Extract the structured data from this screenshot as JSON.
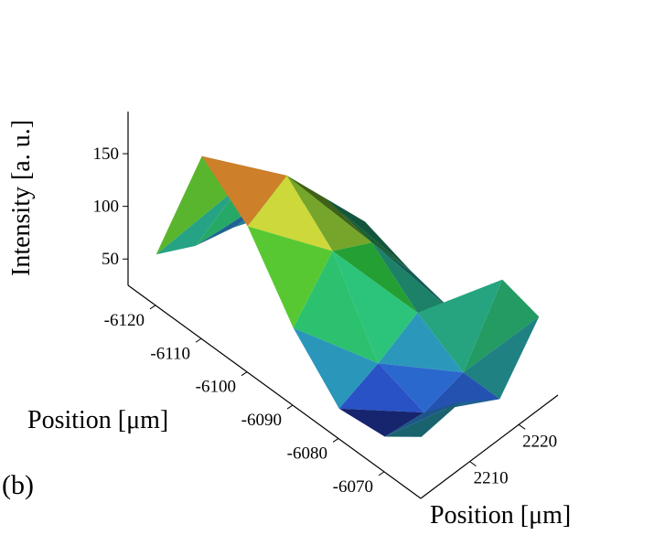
{
  "panel_label": "(b)",
  "colors": {
    "low": "#2a3fd8",
    "mid_low": "#33e0d0",
    "mid": "#36f03a",
    "mid_high": "#e8f542",
    "high": "#e8321e",
    "shadow": "#1c2a24"
  },
  "chart_data": {
    "type": "surface3d",
    "title": "",
    "z_label": "Intensity [a. u.]",
    "x_label": "Position [μm]",
    "y_label": "Position [μm]",
    "z_ticks": [
      50,
      100,
      150
    ],
    "x_ticks": [
      -6120,
      -6110,
      -6100,
      -6090,
      -6080,
      -6070
    ],
    "y_ticks": [
      2210,
      2220
    ],
    "z_range": [
      25,
      190
    ],
    "x_range": [
      -6126,
      -6062
    ],
    "y_range": [
      2200,
      2228
    ],
    "x_grid": [
      -6122,
      -6112,
      -6102,
      -6092,
      -6082,
      -6072,
      -6064
    ],
    "y_grid": [
      2202,
      2210,
      2218,
      2226
    ],
    "z_values": [
      [
        60,
        40,
        30,
        30
      ],
      [
        185,
        130,
        95,
        60
      ],
      [
        150,
        170,
        120,
        70
      ],
      [
        85,
        130,
        110,
        55
      ],
      [
        40,
        55,
        75,
        45
      ],
      [
        45,
        40,
        50,
        110
      ],
      [
        70,
        75,
        50,
        100
      ]
    ]
  }
}
